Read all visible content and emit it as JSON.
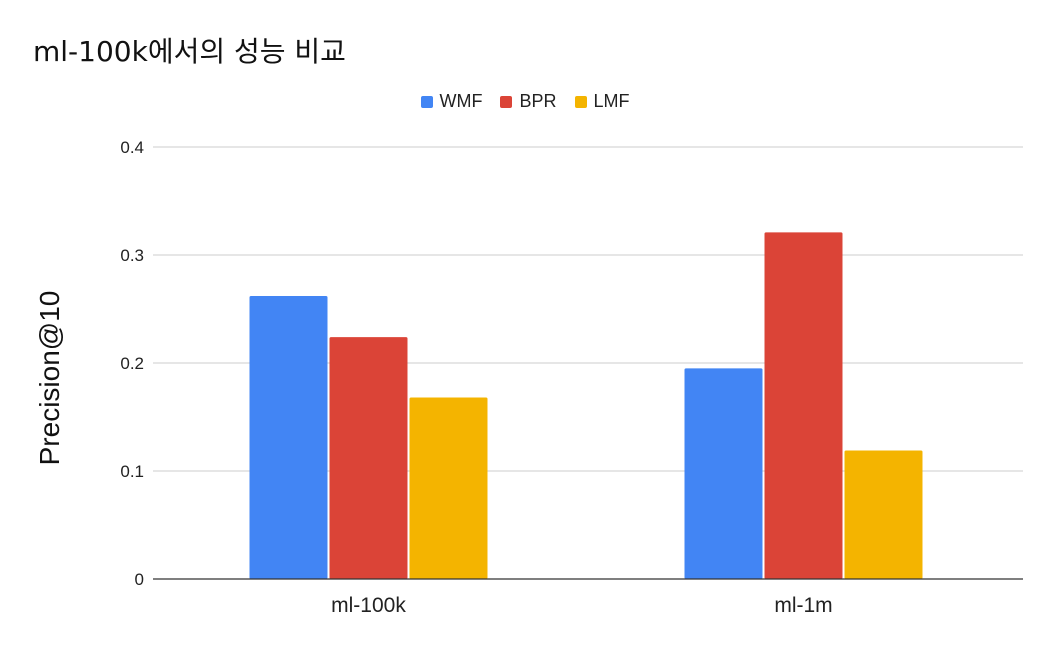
{
  "chart_data": {
    "type": "bar",
    "title": "ml-100k에서의 성능 비교",
    "xlabel": "",
    "ylabel": "Precision@10",
    "categories": [
      "ml-100k",
      "ml-1m"
    ],
    "series": [
      {
        "name": "WMF",
        "color": "#4285f4",
        "values": [
          0.262,
          0.195
        ]
      },
      {
        "name": "BPR",
        "color": "#db4437",
        "values": [
          0.224,
          0.321
        ]
      },
      {
        "name": "LMF",
        "color": "#f4b400",
        "values": [
          0.168,
          0.119
        ]
      }
    ],
    "ylim": [
      0,
      0.4
    ],
    "yticks": [
      "0",
      "0.1",
      "0.2",
      "0.3",
      "0.4"
    ],
    "grid": true,
    "legend_position": "top-center"
  }
}
